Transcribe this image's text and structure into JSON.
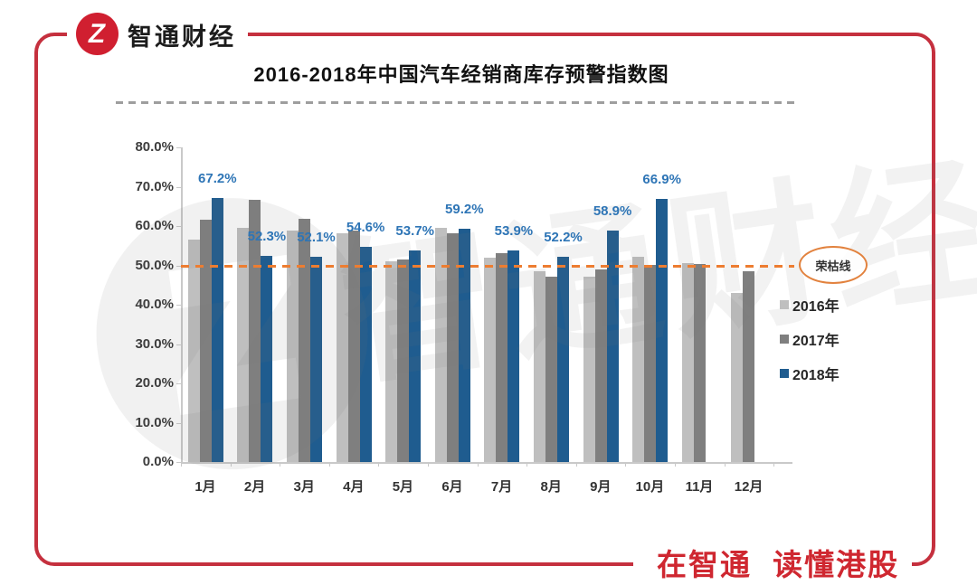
{
  "brand": {
    "name": "智通财经",
    "logo_glyph": "Z",
    "slogan": "在智通 读懂港股"
  },
  "colors": {
    "frame_red": "#C5303E",
    "logo_red": "#D01F30",
    "slogan_red": "#CF2730",
    "bar_2016": "#BFBFBF",
    "bar_2017": "#7F7F7F",
    "bar_2018": "#1F5C8F",
    "data_label_blue": "#2E75B6",
    "reference_orange": "#ED7D31",
    "axis_gray": "#C9C9C9"
  },
  "watermark": {
    "text": "智通财经",
    "glyph": "Z"
  },
  "chart_data": {
    "type": "bar",
    "title": "2016-2018年中国汽车经销商库存预警指数图",
    "categories": [
      "1月",
      "2月",
      "3月",
      "4月",
      "5月",
      "6月",
      "7月",
      "8月",
      "9月",
      "10月",
      "11月",
      "12月"
    ],
    "series": [
      {
        "name": "2016年",
        "color": "#BFBFBF",
        "values": [
          56.6,
          59.6,
          58.9,
          58.1,
          51.0,
          59.6,
          52.0,
          48.4,
          47.1,
          52.2,
          50.5,
          43.1
        ]
      },
      {
        "name": "2017年",
        "color": "#7F7F7F",
        "values": [
          61.5,
          66.6,
          61.9,
          58.9,
          51.6,
          58.2,
          53.1,
          47.2,
          49.0,
          50.2,
          50.4,
          48.4
        ]
      },
      {
        "name": "2018年",
        "color": "#1F5C8F",
        "values": [
          67.2,
          52.3,
          52.1,
          54.6,
          53.7,
          59.2,
          53.9,
          52.2,
          58.9,
          66.9,
          null,
          null
        ],
        "data_labels": [
          "67.2%",
          "52.3%",
          "52.1%",
          "54.6%",
          "53.7%",
          "59.2%",
          "53.9%",
          "52.2%",
          "58.9%",
          "66.9%",
          "",
          ""
        ]
      }
    ],
    "y_ticks": [
      "0.0%",
      "10.0%",
      "20.0%",
      "30.0%",
      "40.0%",
      "50.0%",
      "60.0%",
      "70.0%",
      "80.0%"
    ],
    "ylim": [
      0,
      80
    ],
    "grid": false,
    "legend_position": "right",
    "reference_line": {
      "value": 50,
      "label": "荣枯线",
      "style": "dashed",
      "color": "#ED7D31"
    }
  }
}
